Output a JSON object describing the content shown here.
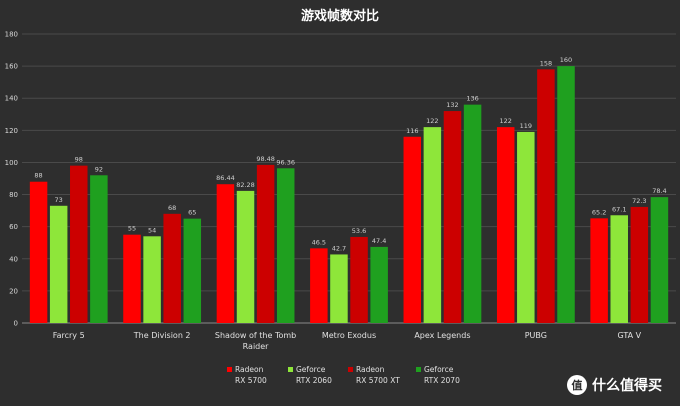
{
  "chart_data": {
    "type": "bar",
    "title": "游戏帧数对比",
    "categories": [
      [
        "Farcry 5"
      ],
      [
        "The Division 2"
      ],
      [
        "Shadow of the Tomb",
        "Raider"
      ],
      [
        "Metro Exodus"
      ],
      [
        "Apex Legends"
      ],
      [
        "PUBG"
      ],
      [
        "GTA V"
      ]
    ],
    "series": [
      {
        "name": [
          "Radeon",
          "RX 5700"
        ],
        "color": "#ff0000",
        "labels": [
          "88",
          "55",
          "86.44",
          "46.5",
          "116",
          "122",
          "65.2"
        ],
        "values": [
          88,
          55,
          86.44,
          46.5,
          116,
          122,
          65.2
        ]
      },
      {
        "name": [
          "Geforce",
          "RTX 2060"
        ],
        "color": "#8ee63a",
        "labels": [
          "73",
          "54",
          "82.28",
          "42.7",
          "122",
          "119",
          "67.1"
        ],
        "values": [
          73,
          54,
          82.28,
          42.7,
          122,
          119,
          67.1
        ]
      },
      {
        "name": [
          "Radeon",
          "RX 5700 XT"
        ],
        "color": "#cc0000",
        "labels": [
          "98",
          "68",
          "98.48",
          "53.6",
          "132",
          "158",
          "72.3"
        ],
        "values": [
          98,
          68,
          98.48,
          53.6,
          132,
          158,
          72.3
        ]
      },
      {
        "name": [
          "Geforce",
          "RTX 2070"
        ],
        "color": "#1fa01f",
        "labels": [
          "92",
          "65",
          "96.36",
          "47.4",
          "136",
          "160",
          "78.4"
        ],
        "values": [
          92,
          65,
          96.36,
          47.4,
          136,
          160,
          78.4
        ]
      }
    ],
    "ylim": [
      0,
      180
    ],
    "yticks": [
      "0",
      "20",
      "40",
      "60",
      "80",
      "100",
      "120",
      "140",
      "160",
      "180"
    ],
    "grid": true,
    "legend_position": "bottom"
  },
  "watermark": {
    "text": "什么值得买",
    "icon": "zhi-logo-icon",
    "glyph": "值"
  }
}
